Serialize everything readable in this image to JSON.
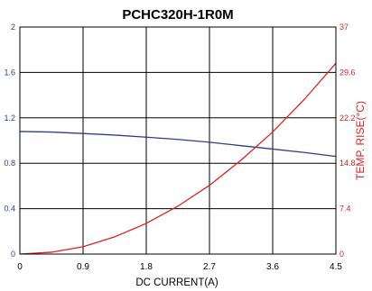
{
  "chart_data": {
    "type": "line",
    "title": "PCHC320H-1R0M",
    "xlabel": "DC CURRENT(A)",
    "ylabel": "",
    "y2label": "TEMP. RISE(°C)",
    "xlim": [
      0,
      4.5
    ],
    "ylim": [
      0,
      2
    ],
    "y2lim": [
      0,
      37
    ],
    "xticks": [
      "0",
      "0.9",
      "1.8",
      "2.7",
      "3.6",
      "4.5"
    ],
    "yticks": [
      "0",
      "0.4",
      "0.8",
      "1.2",
      "1.6",
      "2"
    ],
    "y2ticks": [
      "0",
      "7.4",
      "14.8",
      "22.2",
      "29.6",
      "37"
    ],
    "grid": true,
    "series": [
      {
        "axis": "left",
        "color": "#2a3f86",
        "x": [
          0,
          0.45,
          0.9,
          1.35,
          1.8,
          2.25,
          2.7,
          3.15,
          3.6,
          4.05,
          4.5
        ],
        "y": [
          1.08,
          1.075,
          1.062,
          1.048,
          1.03,
          1.01,
          0.985,
          0.955,
          0.925,
          0.895,
          0.86
        ]
      },
      {
        "axis": "right",
        "color": "#e02020",
        "x": [
          0,
          0.45,
          0.9,
          1.35,
          1.8,
          2.25,
          2.7,
          3.15,
          3.6,
          4.05,
          4.5
        ],
        "y": [
          0,
          0.3,
          1.2,
          2.8,
          5.0,
          7.8,
          11.2,
          15.3,
          19.9,
          25.2,
          31.1
        ]
      }
    ]
  }
}
